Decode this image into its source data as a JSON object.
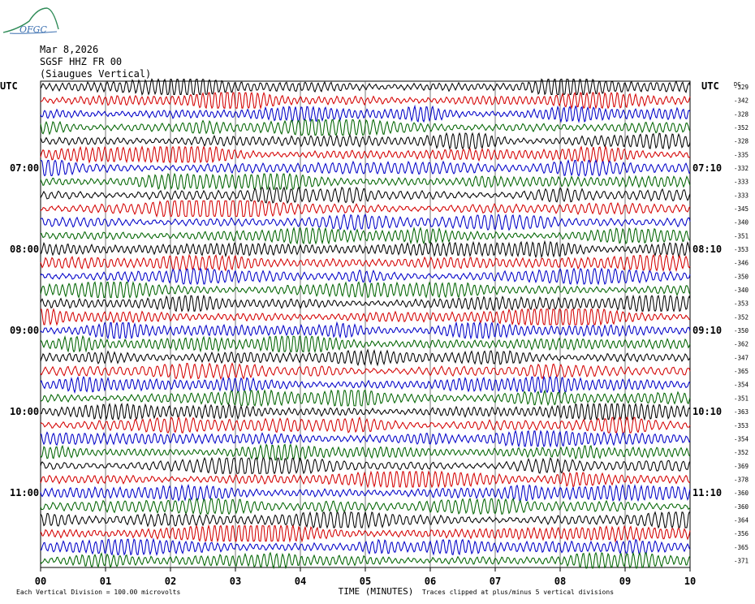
{
  "header": {
    "date": "Mar 8,2026",
    "station": "SGSF HHZ FR 00",
    "location": "(Siaugues Vertical)",
    "logo_text": "OFGC"
  },
  "colors": {
    "cycle": [
      "#000000",
      "#d40000",
      "#0000c8",
      "#006400"
    ],
    "grid": "#000000"
  },
  "chart_data": {
    "type": "line",
    "title": "",
    "xlabel": "TIME (MINUTES)",
    "x_ticks": [
      "00",
      "01",
      "02",
      "03",
      "04",
      "05",
      "06",
      "07",
      "08",
      "09",
      "10"
    ],
    "xlim": [
      0,
      10
    ],
    "left_axis_label": "UTC",
    "right_axis_label": "UTC",
    "dc_label": "DC",
    "left_time_labels": [
      "07:00",
      "08:00",
      "09:00",
      "10:00",
      "11:00"
    ],
    "right_time_labels": [
      "07:10",
      "08:10",
      "09:10",
      "10:10",
      "11:10"
    ],
    "time_label_rows": [
      6,
      12,
      18,
      24,
      30
    ],
    "trace_count": 36,
    "dc_offsets": [
      "-329",
      "-342",
      "-328",
      "-352",
      "-328",
      "-335",
      "-332",
      "-333",
      "-333",
      "-345",
      "-340",
      "-351",
      "-353",
      "-346",
      "-350",
      "-340",
      "-353",
      "-352",
      "-350",
      "-362",
      "-347",
      "-365",
      "-354",
      "-351",
      "-363",
      "-353",
      "-354",
      "-352",
      "-369",
      "-378",
      "-360",
      "-360",
      "-364",
      "-356",
      "-365",
      "-371"
    ],
    "footer_left": "Each Vertical Division = 100.00 microvolts",
    "footer_right": "Traces clipped at plus/minus 5 vertical divisions",
    "grid": true
  }
}
